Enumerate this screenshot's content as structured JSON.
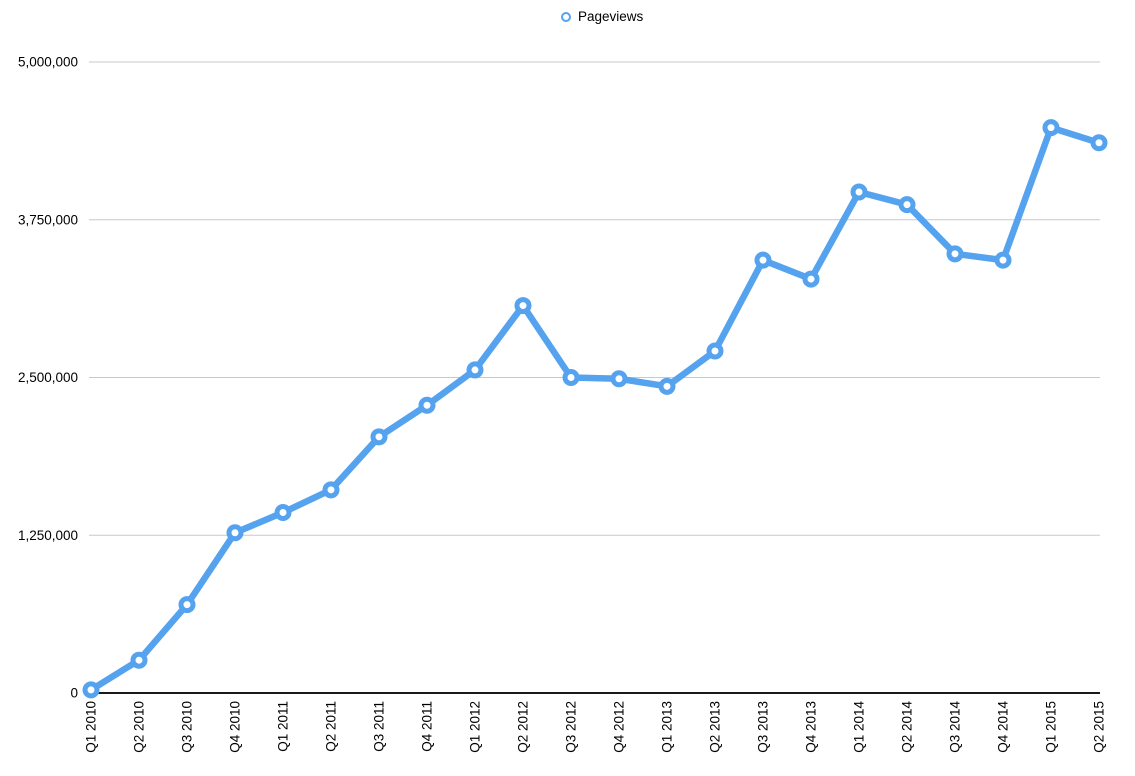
{
  "legend": {
    "label": "Pageviews"
  },
  "chart_data": {
    "type": "line",
    "title": "",
    "xlabel": "",
    "ylabel": "",
    "grid": true,
    "legend_position": "top-center",
    "categories": [
      "Q1 2010",
      "Q2 2010",
      "Q3 2010",
      "Q4 2010",
      "Q1 2011",
      "Q2 2011",
      "Q3 2011",
      "Q4 2011",
      "Q1 2012",
      "Q2 2012",
      "Q3 2012",
      "Q4 2012",
      "Q1 2013",
      "Q2 2013",
      "Q3 2013",
      "Q4 2013",
      "Q1 2014",
      "Q2 2014",
      "Q3 2014",
      "Q4 2014",
      "Q1 2015",
      "Q2 2015"
    ],
    "series": [
      {
        "name": "Pageviews",
        "marker": "ring",
        "values": [
          25000,
          260000,
          700000,
          1270000,
          1430000,
          1610000,
          2030000,
          2280000,
          2560000,
          3070000,
          2500000,
          2490000,
          2430000,
          2710000,
          3430000,
          3280000,
          3970000,
          3870000,
          3480000,
          3430000,
          4480000,
          4360000
        ]
      }
    ],
    "ylim": [
      0,
      5000000
    ],
    "yticks": [
      0,
      1250000,
      2500000,
      3750000,
      5000000
    ],
    "ytick_labels": [
      "0",
      "1,250,000",
      "2,500,000",
      "3,750,000",
      "5,000,000"
    ],
    "colors": {
      "line": "#55a2ee",
      "marker_fill": "#ffffff",
      "gridline": "#c8c8c8",
      "axis": "#1a1a1a",
      "text": "#000000"
    }
  }
}
